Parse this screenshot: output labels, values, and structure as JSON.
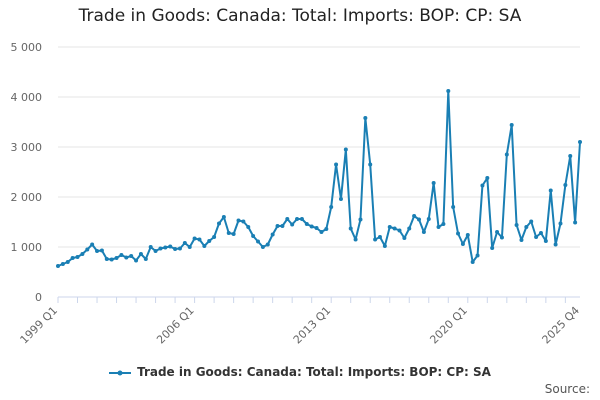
{
  "source_label": "Source:",
  "colors": {
    "series": "#1a7fb4",
    "grid": "#e6e6e6",
    "axis": "#ccd6eb"
  },
  "chart_data": {
    "type": "line",
    "title": "Trade in Goods: Canada: Total: Imports: BOP: CP: SA",
    "xlabel": "",
    "ylabel": "",
    "ylim": [
      0,
      5000
    ],
    "yticks": [
      0,
      1000,
      2000,
      3000,
      4000,
      5000
    ],
    "ytick_labels": [
      "0",
      "1 000",
      "2 000",
      "3 000",
      "4 000",
      "5 000"
    ],
    "xtick_labels": [
      "1999 Q1",
      "2006 Q1",
      "2013 Q1",
      "2020 Q1",
      "2025 Q4"
    ],
    "xtick_positions": [
      0,
      28,
      56,
      84,
      107
    ],
    "x_start": "1999 Q1",
    "x_end": "2025 Q4",
    "grid": true,
    "legend": "bottom-center",
    "series": [
      {
        "name": "Trade in Goods: Canada: Total: Imports: BOP: CP: SA",
        "values": [
          620,
          660,
          700,
          780,
          800,
          860,
          950,
          1050,
          920,
          930,
          760,
          750,
          780,
          840,
          790,
          820,
          730,
          860,
          760,
          1000,
          920,
          970,
          990,
          1010,
          960,
          970,
          1080,
          1000,
          1170,
          1150,
          1020,
          1120,
          1200,
          1470,
          1600,
          1280,
          1260,
          1530,
          1510,
          1400,
          1220,
          1110,
          1000,
          1050,
          1250,
          1420,
          1420,
          1560,
          1450,
          1560,
          1560,
          1460,
          1410,
          1380,
          1300,
          1360,
          1800,
          2650,
          1960,
          2950,
          1370,
          1150,
          1550,
          3580,
          2650,
          1150,
          1200,
          1020,
          1400,
          1370,
          1330,
          1180,
          1370,
          1620,
          1550,
          1300,
          1560,
          2280,
          1400,
          1460,
          4120,
          1800,
          1270,
          1060,
          1240,
          700,
          830,
          2230,
          2380,
          980,
          1300,
          1190,
          2850,
          3440,
          1440,
          1140,
          1400,
          1510,
          1200,
          1280,
          1120,
          2130,
          1050,
          1470,
          2240,
          2820,
          1490,
          3100
        ]
      }
    ]
  }
}
